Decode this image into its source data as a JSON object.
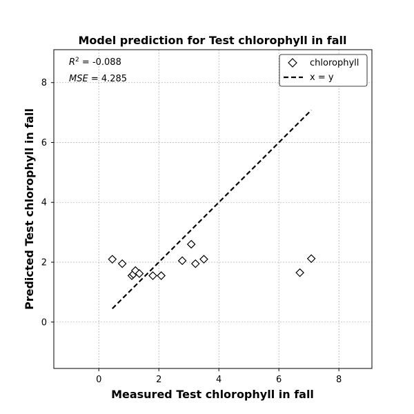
{
  "chart_data": {
    "type": "scatter",
    "title": "Model prediction for Test chlorophyll in fall",
    "xlabel": "Measured Test chlorophyll in fall",
    "ylabel": "Predicted Test chlorophyll in fall",
    "xlim": [
      -1.5,
      9.1
    ],
    "ylim": [
      -1.55,
      9.1
    ],
    "xticks": [
      0,
      2,
      4,
      6,
      8
    ],
    "yticks": [
      0,
      2,
      4,
      6,
      8
    ],
    "grid": true,
    "legend_position": "top-right",
    "stats": {
      "r2_symbol": "R",
      "r2_sup": "2",
      "r2_value": " = -0.088",
      "mse_symbol": "MSE",
      "mse_value": " = 4.285"
    },
    "series": [
      {
        "name": "chlorophyll",
        "marker": "diamond",
        "x": [
          0.45,
          0.78,
          1.1,
          1.15,
          1.22,
          1.35,
          1.8,
          2.08,
          2.78,
          3.08,
          3.22,
          3.5,
          6.7,
          7.08
        ],
        "y": [
          2.1,
          1.95,
          1.55,
          1.6,
          1.72,
          1.62,
          1.55,
          1.55,
          2.05,
          2.6,
          1.95,
          2.1,
          1.65,
          2.12
        ]
      },
      {
        "name": "x = y",
        "style": "dashed",
        "x": [
          0.45,
          7.08
        ],
        "y": [
          0.45,
          7.08
        ]
      }
    ]
  }
}
